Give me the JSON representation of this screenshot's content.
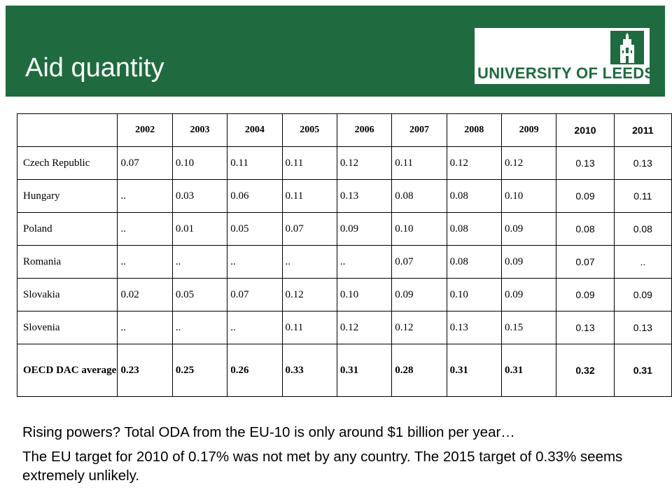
{
  "header": {
    "title": "Aid quantity",
    "logo_text": "UNIVERSITY OF LEEDS",
    "logo_icon": "leeds-crest-icon",
    "brand_color": "#1f6b3f"
  },
  "table": {
    "years": [
      "2002",
      "2003",
      "2004",
      "2005",
      "2006",
      "2007",
      "2008",
      "2009",
      "2010",
      "2011"
    ],
    "rows": [
      {
        "country": "Czech Republic",
        "values": [
          "0.07",
          "0.10",
          "0.11",
          "0.11",
          "0.12",
          "0.11",
          "0.12",
          "0.12",
          "0.13",
          "0.13"
        ]
      },
      {
        "country": "Hungary",
        "values": [
          "..",
          "0.03",
          "0.06",
          "0.11",
          "0.13",
          "0.08",
          "0.08",
          "0.10",
          "0.09",
          "0.11"
        ]
      },
      {
        "country": "Poland",
        "values": [
          "..",
          "0.01",
          "0.05",
          "0.07",
          "0.09",
          "0.10",
          "0.08",
          "0.09",
          "0.08",
          "0.08"
        ]
      },
      {
        "country": "Romania",
        "values": [
          "..",
          "..",
          "..",
          "..",
          "..",
          "0.07",
          "0.08",
          "0.09",
          "0.07",
          ".."
        ]
      },
      {
        "country": "Slovakia",
        "values": [
          "0.02",
          "0.05",
          "0.07",
          "0.12",
          "0.10",
          "0.09",
          "0.10",
          "0.09",
          "0.09",
          "0.09"
        ]
      },
      {
        "country": "Slovenia",
        "values": [
          "..",
          "..",
          "..",
          "0.11",
          "0.12",
          "0.12",
          "0.13",
          "0.15",
          "0.13",
          "0.13"
        ]
      }
    ],
    "average": {
      "label": "OECD DAC average",
      "values": [
        "0.23",
        "0.25",
        "0.26",
        "0.33",
        "0.31",
        "0.28",
        "0.31",
        "0.31",
        "0.32",
        "0.31"
      ]
    }
  },
  "footer": {
    "line1": "Rising powers? Total ODA from the EU-10 is only around $1 billion per year…",
    "line2": "The EU target for 2010 of 0.17% was not met by any country. The 2015 target of 0.33% seems extremely unlikely."
  }
}
